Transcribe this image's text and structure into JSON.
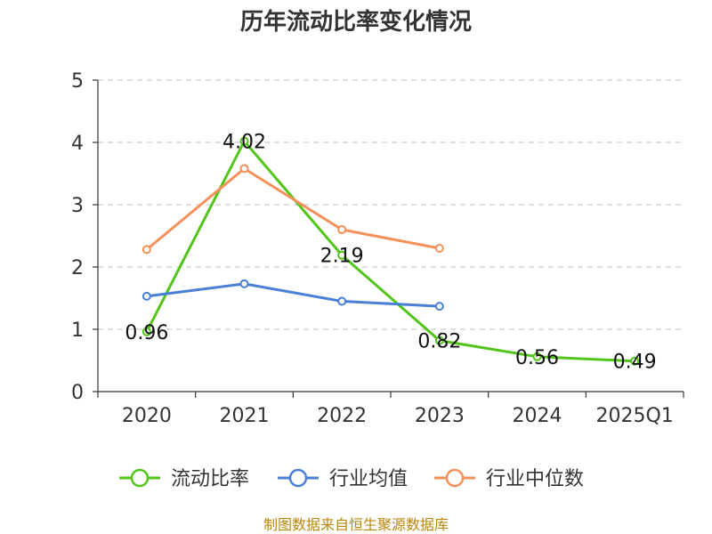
{
  "chart_data": {
    "type": "line",
    "title": "历年流动比率变化情况",
    "categories": [
      "2020",
      "2021",
      "2022",
      "2023",
      "2024",
      "2025Q1"
    ],
    "ylim": [
      0,
      5
    ],
    "yticks": [
      "0",
      "1",
      "2",
      "3",
      "4",
      "5"
    ],
    "grid": true,
    "legend_position": "bottom",
    "series": [
      {
        "name": "流动比率",
        "color": "#52c41a",
        "values": [
          0.96,
          4.02,
          2.19,
          0.82,
          0.56,
          0.49
        ],
        "labels": [
          "0.96",
          "4.02",
          "2.19",
          "0.82",
          "0.56",
          "0.49"
        ]
      },
      {
        "name": "行业均值",
        "color": "#4a7fd8",
        "values": [
          1.53,
          1.73,
          1.45,
          1.37,
          null,
          null
        ]
      },
      {
        "name": "行业中位数",
        "color": "#f5905a",
        "values": [
          2.28,
          3.58,
          2.6,
          2.3,
          null,
          null
        ]
      }
    ],
    "source": "制图数据来自恒生聚源数据库"
  }
}
